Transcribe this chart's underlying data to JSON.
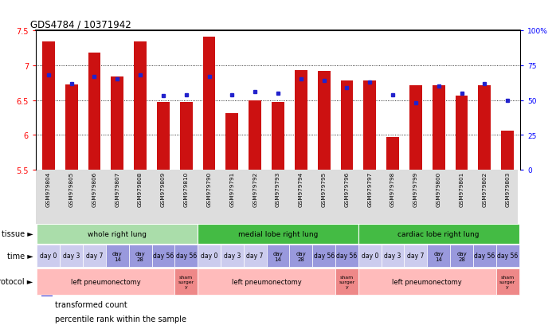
{
  "title": "GDS4784 / 10371942",
  "samples": [
    "GSM979804",
    "GSM979805",
    "GSM979806",
    "GSM979807",
    "GSM979808",
    "GSM979809",
    "GSM979810",
    "GSM979790",
    "GSM979791",
    "GSM979792",
    "GSM979793",
    "GSM979794",
    "GSM979795",
    "GSM979796",
    "GSM979797",
    "GSM979798",
    "GSM979799",
    "GSM979800",
    "GSM979801",
    "GSM979802",
    "GSM979803"
  ],
  "red_values": [
    7.34,
    6.72,
    7.18,
    6.84,
    7.34,
    6.47,
    6.47,
    7.41,
    6.31,
    6.49,
    6.47,
    6.93,
    6.92,
    6.78,
    6.78,
    5.97,
    6.71,
    6.71,
    6.56,
    6.71,
    6.06
  ],
  "blue_values": [
    0.68,
    0.62,
    0.67,
    0.65,
    0.68,
    0.53,
    0.54,
    0.67,
    0.54,
    0.56,
    0.55,
    0.65,
    0.64,
    0.59,
    0.63,
    0.54,
    0.48,
    0.6,
    0.55,
    0.62,
    0.5
  ],
  "ymin": 5.5,
  "ymax": 7.5,
  "bar_color": "#cc1111",
  "dot_color": "#2222cc",
  "tissue_group_data": [
    {
      "start": 0,
      "end": 7,
      "label": "whole right lung",
      "color": "#aaddaa"
    },
    {
      "start": 7,
      "end": 14,
      "label": "medial lobe right lung",
      "color": "#44bb44"
    },
    {
      "start": 14,
      "end": 21,
      "label": "cardiac lobe right lung",
      "color": "#44bb44"
    }
  ],
  "time_label_list": [
    "day 0",
    "day 3",
    "day 7",
    "day\n14",
    "day\n28",
    "day 56",
    "day 56",
    "day 0",
    "day 3",
    "day 7",
    "day\n14",
    "day\n28",
    "day 56",
    "day 56",
    "day 0",
    "day 3",
    "day 7",
    "day\n14",
    "day\n28",
    "day 56",
    "day 56"
  ],
  "time_light": "#ccccee",
  "time_dark": "#9999dd",
  "proto_light": "#ffbbbb",
  "proto_dark": "#ee8888"
}
